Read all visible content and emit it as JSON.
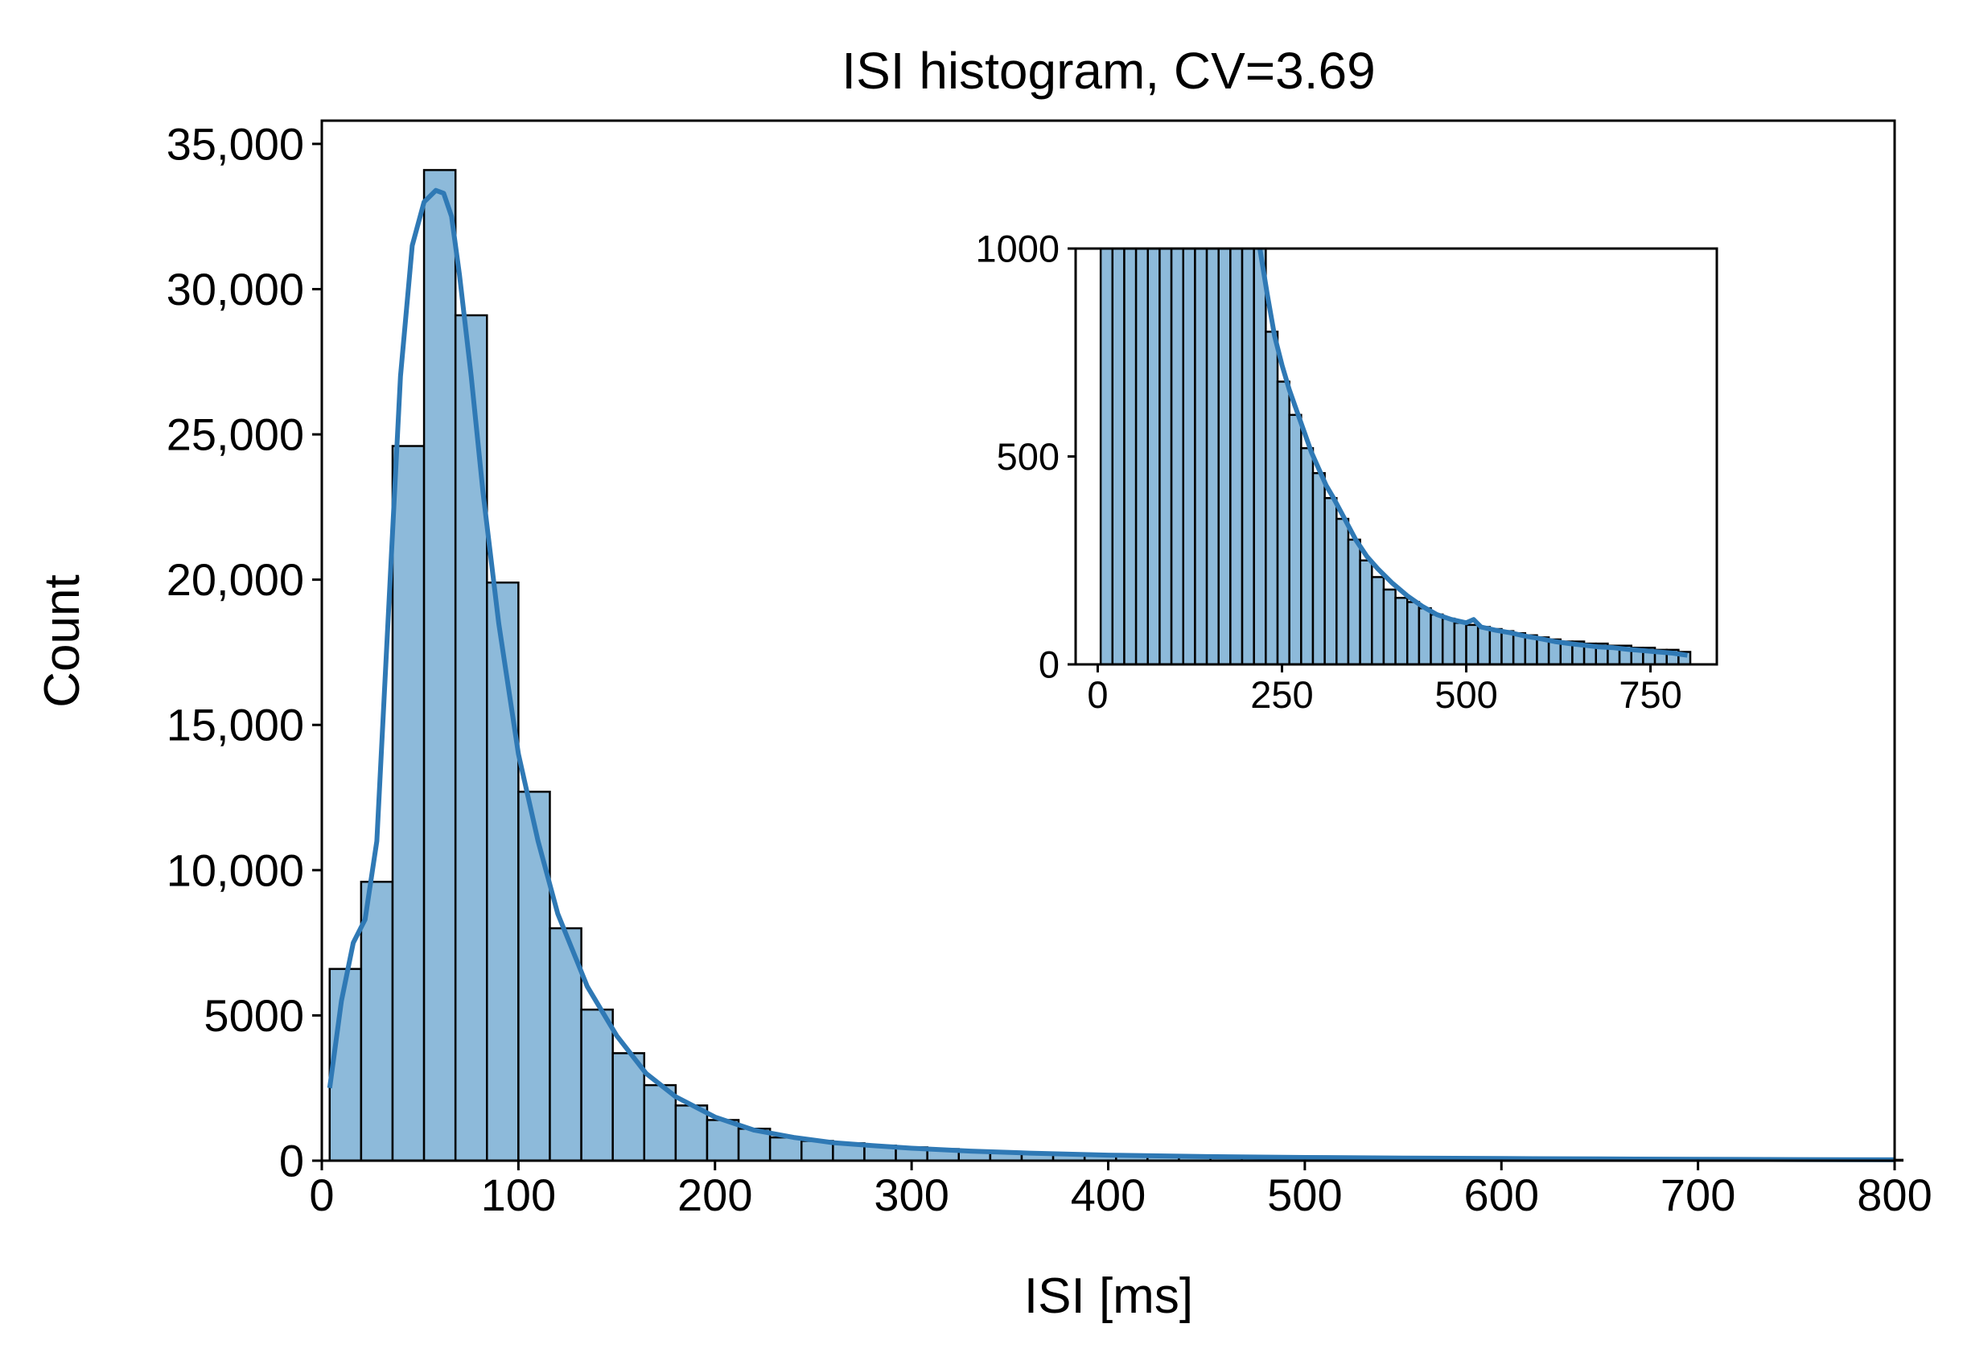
{
  "colors": {
    "bar_fill": "#8dbada",
    "bar_edge": "#000000",
    "kde_line": "#2f79b5",
    "axis": "#000000",
    "background": "#ffffff"
  },
  "chart_data": [
    {
      "type": "bar",
      "role": "main",
      "title": "ISI histogram, CV=3.69",
      "xlabel": "ISI [ms]",
      "ylabel": "Count",
      "xlim": [
        0,
        800
      ],
      "ylim": [
        0,
        35800
      ],
      "bin_width": 16,
      "x_ticks": [
        0,
        100,
        200,
        300,
        400,
        500,
        600,
        700,
        800
      ],
      "x_tick_labels": [
        "0",
        "100",
        "200",
        "300",
        "400",
        "500",
        "600",
        "700",
        "800"
      ],
      "y_ticks": [
        0,
        5000,
        10000,
        15000,
        20000,
        25000,
        30000,
        35000
      ],
      "y_tick_labels": [
        "0",
        "5000",
        "10,000",
        "15,000",
        "20,000",
        "25,000",
        "30,000",
        "35,000"
      ],
      "bins_start": [
        4,
        20,
        36,
        52,
        68,
        84,
        100,
        116,
        132,
        148,
        164,
        180,
        196,
        212,
        228,
        244,
        260,
        276,
        292,
        308,
        324,
        340,
        356,
        372,
        388,
        404,
        420,
        436,
        452,
        468,
        484,
        500,
        516,
        532,
        548,
        564,
        580,
        596,
        612,
        628,
        644,
        660,
        676,
        692,
        708,
        724,
        740,
        756,
        772,
        788
      ],
      "values": [
        6600,
        9600,
        24600,
        34100,
        29100,
        19900,
        12700,
        8000,
        5200,
        3700,
        2600,
        1900,
        1400,
        1100,
        800,
        680,
        600,
        520,
        460,
        400,
        350,
        300,
        250,
        210,
        180,
        160,
        150,
        135,
        120,
        110,
        100,
        95,
        90,
        85,
        80,
        75,
        70,
        65,
        60,
        55,
        55,
        50,
        50,
        45,
        45,
        40,
        40,
        35,
        35,
        30
      ],
      "kde_x": [
        4,
        10,
        16,
        22,
        28,
        34,
        40,
        46,
        52,
        58,
        62,
        66,
        70,
        76,
        82,
        90,
        100,
        110,
        120,
        135,
        150,
        165,
        180,
        200,
        220,
        240,
        260,
        280,
        300,
        330,
        360,
        400,
        450,
        500,
        550,
        600,
        650,
        700,
        750,
        800
      ],
      "kde_y": [
        2500,
        5500,
        7500,
        8300,
        11000,
        19000,
        27000,
        31500,
        33000,
        33400,
        33300,
        32500,
        30500,
        27000,
        23000,
        18500,
        14000,
        11000,
        8500,
        6000,
        4300,
        3000,
        2200,
        1500,
        1050,
        800,
        620,
        520,
        430,
        330,
        260,
        190,
        140,
        110,
        90,
        75,
        60,
        50,
        40,
        30
      ]
    },
    {
      "type": "bar",
      "role": "inset",
      "xlim": [
        -30,
        840
      ],
      "ylim": [
        0,
        1000
      ],
      "bin_width": 16,
      "x_ticks": [
        0,
        250,
        500,
        750
      ],
      "x_tick_labels": [
        "0",
        "250",
        "500",
        "750"
      ],
      "y_ticks": [
        0,
        500,
        1000
      ],
      "y_tick_labels": [
        "0",
        "500",
        "1000"
      ],
      "bins_start": [
        4,
        20,
        36,
        52,
        68,
        84,
        100,
        116,
        132,
        148,
        164,
        180,
        196,
        212,
        228,
        244,
        260,
        276,
        292,
        308,
        324,
        340,
        356,
        372,
        388,
        404,
        420,
        436,
        452,
        468,
        484,
        500,
        516,
        532,
        548,
        564,
        580,
        596,
        612,
        628,
        644,
        660,
        676,
        692,
        708,
        724,
        740,
        756,
        772,
        788
      ],
      "values": [
        6600,
        9600,
        24600,
        34100,
        29100,
        19900,
        12700,
        8000,
        5200,
        3700,
        2600,
        1900,
        1400,
        1100,
        800,
        680,
        600,
        520,
        460,
        400,
        350,
        300,
        250,
        210,
        180,
        160,
        150,
        135,
        120,
        110,
        100,
        95,
        90,
        85,
        80,
        75,
        70,
        65,
        60,
        55,
        55,
        50,
        50,
        45,
        45,
        40,
        40,
        35,
        35,
        30
      ],
      "kde_x": [
        220,
        230,
        240,
        250,
        260,
        270,
        280,
        290,
        300,
        310,
        320,
        335,
        350,
        365,
        380,
        400,
        420,
        440,
        460,
        480,
        500,
        510,
        520,
        540,
        560,
        580,
        600,
        620,
        640,
        660,
        680,
        700,
        720,
        740,
        760,
        780,
        800
      ],
      "kde_y": [
        1000,
        890,
        790,
        720,
        660,
        610,
        560,
        510,
        470,
        430,
        400,
        350,
        300,
        260,
        230,
        195,
        165,
        140,
        120,
        108,
        100,
        108,
        90,
        82,
        76,
        68,
        62,
        55,
        50,
        46,
        42,
        40,
        36,
        33,
        30,
        27,
        22
      ]
    }
  ]
}
